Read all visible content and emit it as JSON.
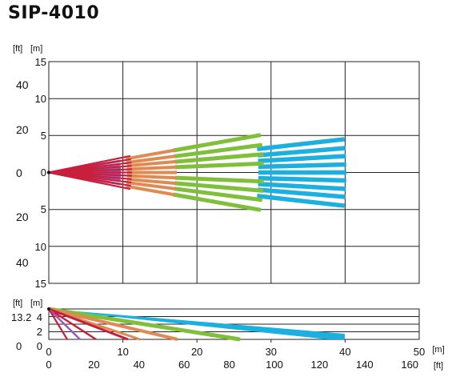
{
  "title": "SIP-4010",
  "top_view": {
    "unit_labels": {
      "ft": "[ft]",
      "m": "[m]"
    },
    "m_ticks": [
      "15",
      "10",
      "5",
      "0",
      "5",
      "10",
      "15"
    ],
    "ft_ticks": [
      "40",
      "20",
      "0",
      "20",
      "40"
    ]
  },
  "side_view": {
    "unit_labels": {
      "ft": "[ft]",
      "m": "[m]"
    },
    "m_ticks": [
      "4",
      "2",
      "0"
    ],
    "ft_ticks": [
      "13.2",
      "0"
    ],
    "x_m_ticks": [
      "0",
      "10",
      "20",
      "30",
      "40",
      "50"
    ],
    "x_ft_ticks": [
      "0",
      "20",
      "40",
      "60",
      "80",
      "100",
      "120",
      "140",
      "160"
    ],
    "x_unit_m": "[m]",
    "x_unit_ft": "[ft]"
  },
  "beam_colors": {
    "zone_1": "#c8203c",
    "zone_2": "#9a5cb5",
    "zone_3": "#de8a52",
    "zone_4": "#7fbf3a",
    "zone_5": "#1bb0df"
  }
}
